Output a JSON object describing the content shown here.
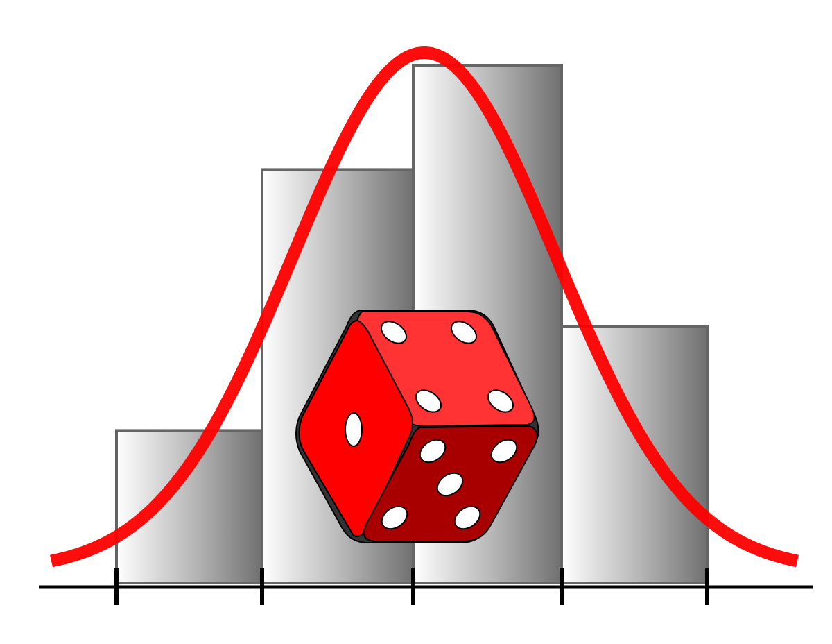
{
  "illustration": {
    "icon": "histogram-with-bell-curve-and-die",
    "colors": {
      "background": "#ffffff",
      "curve": "#ff0000",
      "axis": "#000000",
      "bar_stroke": "#666666",
      "bar_gradient_light": "#ffffff",
      "bar_gradient_dark": "#707070",
      "die_top": "#ff3333",
      "die_left": "#ff0000",
      "die_right": "#a80000",
      "pip": "#ffffff"
    }
  },
  "chart_data": {
    "type": "bar",
    "categories": [
      "",
      "",
      "",
      ""
    ],
    "values": [
      3,
      8,
      10,
      5
    ],
    "title": "",
    "xlabel": "",
    "ylabel": "",
    "grid": false,
    "legend": "none",
    "overlay": "normal-distribution-curve"
  },
  "die": {
    "top_face_value": 4,
    "left_face_value": 1,
    "right_face_value": 5
  }
}
